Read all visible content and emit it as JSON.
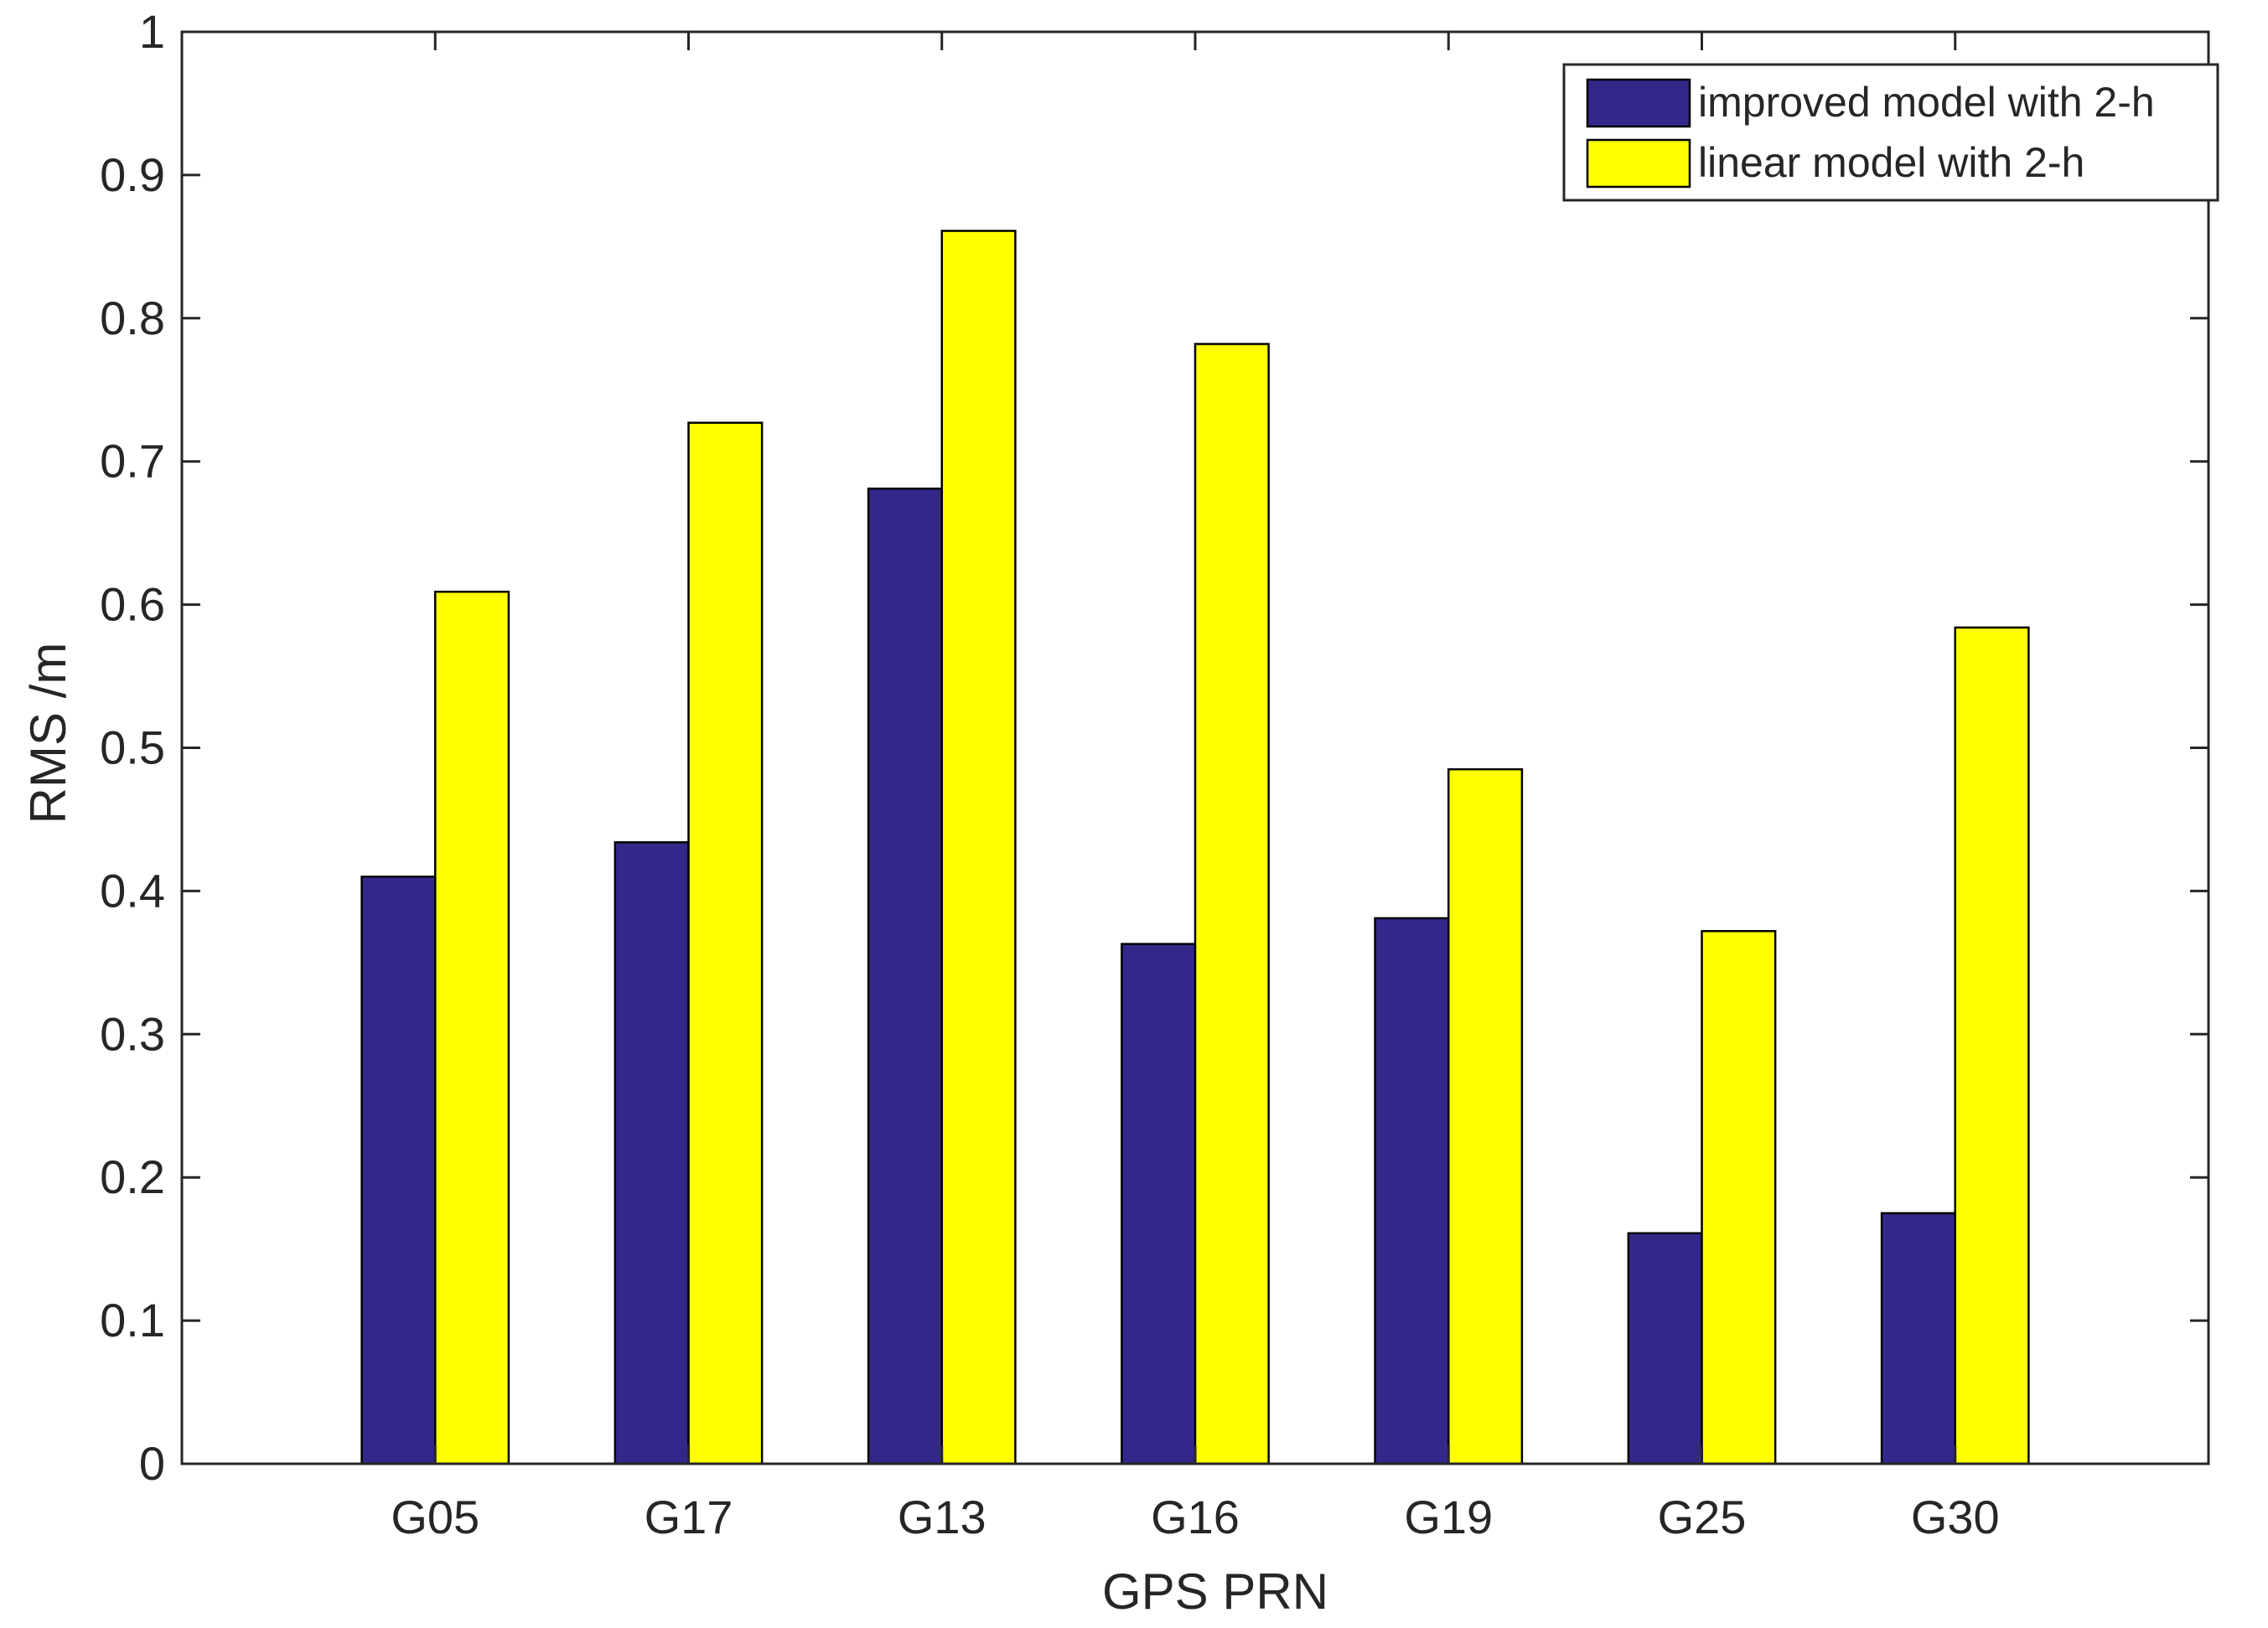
{
  "chart_data": {
    "type": "bar",
    "title": "",
    "xlabel": "GPS PRN",
    "ylabel": "RMS /m",
    "categories": [
      "G05",
      "G17",
      "G13",
      "G16",
      "G19",
      "G25",
      "G30"
    ],
    "series": [
      {
        "name": "improved model with 2-h",
        "color": "#33288a",
        "values": [
          0.41,
          0.434,
          0.681,
          0.363,
          0.381,
          0.161,
          0.175
        ]
      },
      {
        "name": "linear model with 2-h",
        "color": "#ffff00",
        "values": [
          0.609,
          0.727,
          0.861,
          0.782,
          0.485,
          0.372,
          0.584
        ]
      }
    ],
    "ylim": [
      0,
      1
    ],
    "yticks": [
      0,
      0.1,
      0.2,
      0.3,
      0.4,
      0.5,
      0.6,
      0.7,
      0.8,
      0.9,
      1
    ],
    "ytick_labels": [
      "0",
      "0.1",
      "0.2",
      "0.3",
      "0.4",
      "0.5",
      "0.6",
      "0.7",
      "0.8",
      "0.9",
      "1"
    ],
    "grid": false,
    "legend_position": "top-right"
  }
}
